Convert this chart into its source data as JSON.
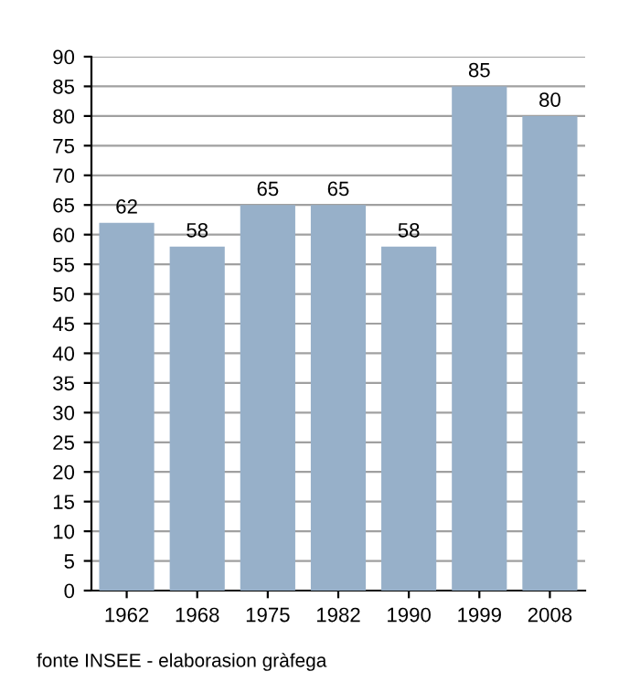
{
  "chart_data": {
    "type": "bar",
    "categories": [
      "1962",
      "1968",
      "1975",
      "1982",
      "1990",
      "1999",
      "2008"
    ],
    "values": [
      62,
      58,
      65,
      65,
      58,
      85,
      80
    ],
    "color": "#97b0c9",
    "ylim": [
      0,
      90
    ],
    "yticks": [
      0,
      5,
      10,
      15,
      20,
      25,
      30,
      35,
      40,
      45,
      50,
      55,
      60,
      65,
      70,
      75,
      80,
      85,
      90
    ],
    "grid": "y",
    "data_labels": true,
    "legend": false,
    "annotations": [
      "fonte INSEE - elaborasion gràfega"
    ]
  }
}
